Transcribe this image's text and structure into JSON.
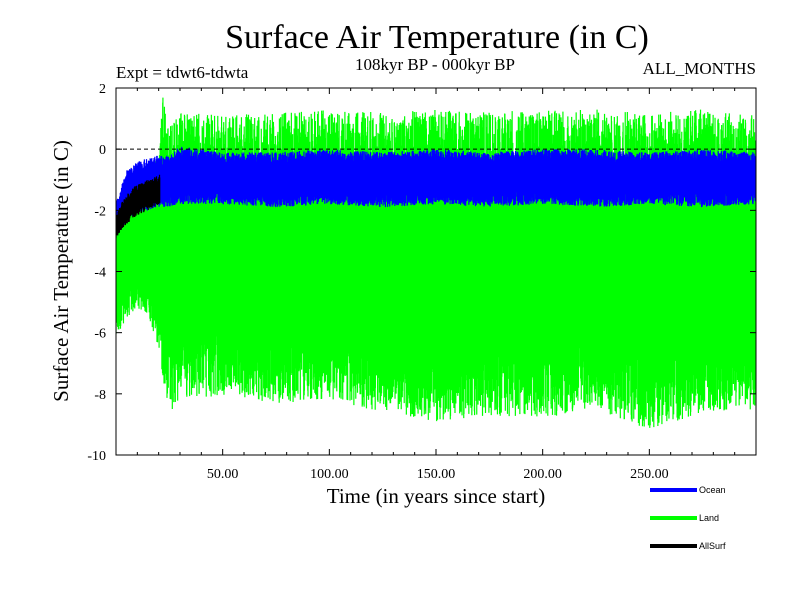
{
  "chart_data": {
    "type": "line",
    "title": "Surface Air Temperature (in C)",
    "experiment_label": "Expt = tdwt6-tdwta",
    "period_label": "108kyr BP - 000kyr BP",
    "months_label": "ALL_MONTHS",
    "xlabel": "Time (in years since start)",
    "ylabel": "Surface Air Temperature (in C)",
    "xlim": [
      0,
      300
    ],
    "ylim": [
      -10,
      2
    ],
    "x_ticks": [
      50,
      100,
      150,
      200,
      250
    ],
    "x_tick_labels": [
      "50.00",
      "100.00",
      "150.00",
      "200.00",
      "250.00"
    ],
    "y_ticks": [
      -10,
      -8,
      -6,
      -4,
      -2,
      0,
      2
    ],
    "y_tick_labels": [
      "-10",
      "-8",
      "-6",
      "-4",
      "-2",
      "0",
      "2"
    ],
    "zero_line": 0,
    "series": [
      {
        "name": "Land",
        "color": "#00ff00",
        "x": [
          0,
          5,
          10,
          15,
          20,
          22,
          25,
          30,
          50,
          75,
          100,
          125,
          150,
          175,
          200,
          225,
          250,
          275,
          300
        ],
        "upper": [
          -2.0,
          -1.3,
          -0.9,
          -0.6,
          -0.3,
          1.7,
          0.8,
          1.2,
          1.1,
          1.2,
          1.3,
          1.2,
          1.3,
          1.2,
          1.3,
          1.3,
          1.2,
          1.3,
          1.1
        ],
        "lower": [
          -6.3,
          -5.5,
          -5.2,
          -5.4,
          -6.5,
          -7.5,
          -8.7,
          -8.1,
          -8.1,
          -8.3,
          -8.2,
          -8.6,
          -8.9,
          -8.7,
          -8.8,
          -8.5,
          -9.2,
          -8.6,
          -8.5
        ]
      },
      {
        "name": "Ocean",
        "color": "#0000ff",
        "x": [
          0,
          5,
          10,
          15,
          20,
          25,
          30,
          50,
          75,
          100,
          125,
          150,
          175,
          200,
          225,
          250,
          275,
          300
        ],
        "upper": [
          -1.7,
          -0.7,
          -0.4,
          -0.3,
          -0.2,
          -0.2,
          0.1,
          -0.1,
          -0.1,
          0.0,
          -0.1,
          0.0,
          -0.1,
          0.0,
          0.0,
          -0.1,
          0.0,
          -0.1
        ],
        "lower": [
          -2.9,
          -2.3,
          -2.1,
          -2.0,
          -1.9,
          -1.9,
          -1.8,
          -1.8,
          -1.9,
          -1.8,
          -1.9,
          -1.8,
          -1.9,
          -1.8,
          -1.9,
          -1.8,
          -1.9,
          -1.8
        ]
      },
      {
        "name": "AllSurf",
        "color": "#000000",
        "x": [
          0,
          3,
          6,
          9,
          12,
          15,
          18,
          20.5
        ],
        "upper": [
          -2.2,
          -1.7,
          -1.4,
          -1.2,
          -1.1,
          -1.0,
          -0.9,
          -0.8
        ],
        "lower": [
          -2.9,
          -2.6,
          -2.4,
          -2.2,
          -2.1,
          -2.0,
          -1.9,
          -1.8
        ]
      }
    ],
    "legend_position": "bottom-right"
  }
}
